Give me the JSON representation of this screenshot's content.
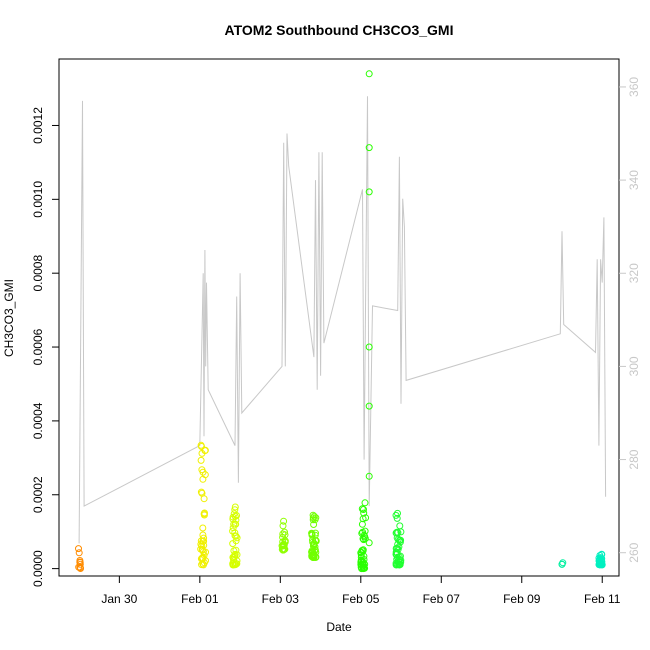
{
  "chart_data": {
    "type": "scatter",
    "title": "ATOM2 Southbound CH3CO3_GMI",
    "xlabel": "Date",
    "ylabel": "CH3CO3_GMI",
    "xlim": [
      "2018-01-28T12:00",
      "2018-02-11T10:00"
    ],
    "ylim": [
      -2e-05,
      0.00138
    ],
    "y2lim": [
      255,
      366
    ],
    "x_ticks": [
      {
        "label": "Jan 30",
        "value": "2018-01-30"
      },
      {
        "label": "Feb 01",
        "value": "2018-02-01"
      },
      {
        "label": "Feb 03",
        "value": "2018-02-03"
      },
      {
        "label": "Feb 05",
        "value": "2018-02-05"
      },
      {
        "label": "Feb 07",
        "value": "2018-02-07"
      },
      {
        "label": "Feb 09",
        "value": "2018-02-09"
      },
      {
        "label": "Feb 11",
        "value": "2018-02-11"
      }
    ],
    "y_ticks": [
      {
        "label": "0.0000",
        "value": 0
      },
      {
        "label": "0.0002",
        "value": 0.0002
      },
      {
        "label": "0.0004",
        "value": 0.0004
      },
      {
        "label": "0.0006",
        "value": 0.0006
      },
      {
        "label": "0.0008",
        "value": 0.0008
      },
      {
        "label": "0.0010",
        "value": 0.001
      },
      {
        "label": "0.0012",
        "value": 0.0012
      }
    ],
    "y2_ticks": [
      {
        "label": "260",
        "value": 260
      },
      {
        "label": "280",
        "value": 280
      },
      {
        "label": "300",
        "value": 300
      },
      {
        "label": "320",
        "value": 320
      },
      {
        "label": "340",
        "value": 340
      },
      {
        "label": "360",
        "value": 360
      }
    ],
    "grid": false,
    "scatter_clusters": [
      {
        "center": "2018-01-29T00:30",
        "spread_hours": 2,
        "ymin": 0.0,
        "ymax": 7e-05,
        "count": 10,
        "color": "#ff8c00"
      },
      {
        "center": "2018-02-01T02:00",
        "spread_hours": 3,
        "ymin": 1e-05,
        "ymax": 0.00034,
        "count": 40,
        "color": "#f0f000"
      },
      {
        "center": "2018-02-01T21:00",
        "spread_hours": 3,
        "ymin": 1e-05,
        "ymax": 0.00017,
        "count": 40,
        "color": "#d6ff00"
      },
      {
        "center": "2018-02-03T02:00",
        "spread_hours": 2,
        "ymin": 5e-05,
        "ymax": 0.00013,
        "count": 22,
        "color": "#90ff00"
      },
      {
        "center": "2018-02-03T20:00",
        "spread_hours": 3,
        "ymin": 3e-05,
        "ymax": 0.00015,
        "count": 45,
        "color": "#70ff00"
      },
      {
        "center": "2018-02-05T01:30",
        "spread_hours": 3,
        "ymin": 0.0,
        "ymax": 0.00018,
        "count": 45,
        "color": "#2aff00"
      },
      {
        "center": "2018-02-05T22:30",
        "spread_hours": 3,
        "ymin": 1e-05,
        "ymax": 0.00015,
        "count": 42,
        "color": "#20ff30"
      },
      {
        "center": "2018-02-10T00:00",
        "spread_hours": 1,
        "ymin": 0.0,
        "ymax": 2e-05,
        "count": 3,
        "color": "#00f0a0"
      },
      {
        "center": "2018-02-10T23:00",
        "spread_hours": 2,
        "ymin": 1e-05,
        "ymax": 4e-05,
        "count": 35,
        "color": "#00f0c0"
      }
    ],
    "scatter_extra": [
      {
        "x": "2018-02-05T05:00",
        "y": 0.00134,
        "color": "#2aff00"
      },
      {
        "x": "2018-02-05T05:00",
        "y": 0.00114,
        "color": "#2aff00"
      },
      {
        "x": "2018-02-05T05:00",
        "y": 0.00102,
        "color": "#2aff00"
      },
      {
        "x": "2018-02-05T05:00",
        "y": 0.0006,
        "color": "#2aff00"
      },
      {
        "x": "2018-02-05T05:00",
        "y": 0.00044,
        "color": "#2aff00"
      },
      {
        "x": "2018-02-05T05:00",
        "y": 0.00025,
        "color": "#2aff00"
      },
      {
        "x": "2018-02-05T05:00",
        "y": 7e-05,
        "color": "#2aff00"
      }
    ],
    "secondary_line": {
      "color": "#c8c8c8",
      "points": [
        [
          "2018-01-29T00:00",
          262
        ],
        [
          "2018-01-29T02:00",
          357
        ],
        [
          "2018-01-29T03:00",
          270
        ],
        [
          "2018-02-01T00:00",
          283
        ],
        [
          "2018-02-01T02:00",
          320
        ],
        [
          "2018-02-01T02:30",
          285
        ],
        [
          "2018-02-01T03:00",
          325
        ],
        [
          "2018-02-01T03:30",
          300
        ],
        [
          "2018-02-01T04:00",
          318
        ],
        [
          "2018-02-01T05:00",
          295
        ],
        [
          "2018-02-01T21:00",
          283
        ],
        [
          "2018-02-01T22:00",
          315
        ],
        [
          "2018-02-01T23:00",
          275
        ],
        [
          "2018-02-02T00:00",
          320
        ],
        [
          "2018-02-02T01:00",
          290
        ],
        [
          "2018-02-03T01:00",
          300
        ],
        [
          "2018-02-03T02:00",
          348
        ],
        [
          "2018-02-03T03:00",
          300
        ],
        [
          "2018-02-03T04:00",
          350
        ],
        [
          "2018-02-03T05:00",
          343
        ],
        [
          "2018-02-03T20:00",
          302
        ],
        [
          "2018-02-03T21:00",
          340
        ],
        [
          "2018-02-03T22:00",
          295
        ],
        [
          "2018-02-03T23:00",
          346
        ],
        [
          "2018-02-04T00:00",
          298
        ],
        [
          "2018-02-04T01:00",
          346
        ],
        [
          "2018-02-04T02:00",
          305
        ],
        [
          "2018-02-05T01:00",
          338
        ],
        [
          "2018-02-05T02:00",
          280
        ],
        [
          "2018-02-05T04:00",
          358
        ],
        [
          "2018-02-05T05:00",
          270
        ],
        [
          "2018-02-05T07:00",
          313
        ],
        [
          "2018-02-05T22:00",
          312
        ],
        [
          "2018-02-05T23:00",
          345
        ],
        [
          "2018-02-06T00:00",
          292
        ],
        [
          "2018-02-06T01:00",
          336
        ],
        [
          "2018-02-06T02:00",
          330
        ],
        [
          "2018-02-06T03:00",
          297
        ],
        [
          "2018-02-09T23:00",
          307
        ],
        [
          "2018-02-10T00:00",
          329
        ],
        [
          "2018-02-10T01:00",
          309
        ],
        [
          "2018-02-10T20:00",
          303
        ],
        [
          "2018-02-10T21:00",
          323
        ],
        [
          "2018-02-10T22:00",
          283
        ],
        [
          "2018-02-10T23:00",
          323
        ],
        [
          "2018-02-11T00:00",
          318
        ],
        [
          "2018-02-11T01:00",
          332
        ],
        [
          "2018-02-11T02:00",
          272
        ]
      ]
    }
  }
}
